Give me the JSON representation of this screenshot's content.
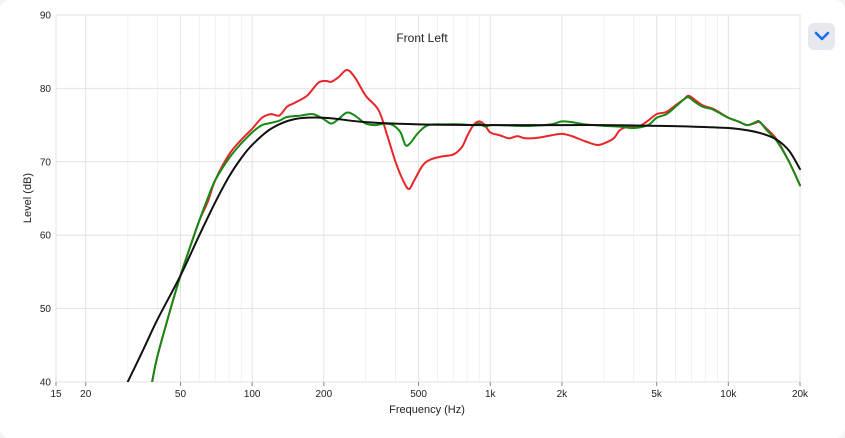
{
  "ui": {
    "collapse_icon": "chevron-down-icon",
    "accent": "#1a6fe8"
  },
  "chart_data": {
    "type": "line",
    "title": "Front Left",
    "xlabel": "Frequency (Hz)",
    "ylabel": "Level (dB)",
    "xscale": "log",
    "xlim": [
      15,
      20000
    ],
    "ylim": [
      40,
      90
    ],
    "grid": true,
    "legend": "none",
    "x_ticks": [
      {
        "value": 15,
        "label": "15"
      },
      {
        "value": 20,
        "label": "20"
      },
      {
        "value": 50,
        "label": "50"
      },
      {
        "value": 100,
        "label": "100"
      },
      {
        "value": 200,
        "label": "200"
      },
      {
        "value": 500,
        "label": "500"
      },
      {
        "value": 1000,
        "label": "1k"
      },
      {
        "value": 2000,
        "label": "2k"
      },
      {
        "value": 5000,
        "label": "5k"
      },
      {
        "value": 10000,
        "label": "10k"
      },
      {
        "value": 20000,
        "label": "20k"
      }
    ],
    "minor_x": [
      30,
      40,
      60,
      70,
      80,
      90,
      300,
      400,
      600,
      700,
      800,
      900,
      3000,
      4000,
      6000,
      7000,
      8000,
      9000
    ],
    "y_ticks": [
      {
        "value": 40,
        "label": "40"
      },
      {
        "value": 50,
        "label": "50"
      },
      {
        "value": 60,
        "label": "60"
      },
      {
        "value": 70,
        "label": "70"
      },
      {
        "value": 80,
        "label": "80"
      },
      {
        "value": 90,
        "label": "90"
      }
    ],
    "series": [
      {
        "color": "#e8262a",
        "points": [
          [
            38,
            40.0
          ],
          [
            40,
            43.5
          ],
          [
            45,
            49.5
          ],
          [
            50,
            54.5
          ],
          [
            55,
            58.5
          ],
          [
            60,
            62.0
          ],
          [
            65,
            64.5
          ],
          [
            70,
            67.5
          ],
          [
            80,
            71.0
          ],
          [
            90,
            73.0
          ],
          [
            100,
            74.5
          ],
          [
            110,
            76.0
          ],
          [
            120,
            76.5
          ],
          [
            130,
            76.3
          ],
          [
            140,
            77.5
          ],
          [
            150,
            78.0
          ],
          [
            170,
            79.0
          ],
          [
            190,
            80.8
          ],
          [
            205,
            81.0
          ],
          [
            215,
            80.9
          ],
          [
            230,
            81.5
          ],
          [
            250,
            82.5
          ],
          [
            270,
            81.5
          ],
          [
            300,
            79.0
          ],
          [
            340,
            77.0
          ],
          [
            370,
            73.5
          ],
          [
            400,
            70.0
          ],
          [
            430,
            67.5
          ],
          [
            455,
            66.3
          ],
          [
            480,
            67.5
          ],
          [
            520,
            69.5
          ],
          [
            560,
            70.3
          ],
          [
            620,
            70.7
          ],
          [
            700,
            71.0
          ],
          [
            760,
            72.0
          ],
          [
            800,
            73.5
          ],
          [
            850,
            75.0
          ],
          [
            900,
            75.5
          ],
          [
            950,
            75.0
          ],
          [
            1000,
            74.0
          ],
          [
            1100,
            73.6
          ],
          [
            1200,
            73.2
          ],
          [
            1300,
            73.5
          ],
          [
            1400,
            73.2
          ],
          [
            1600,
            73.3
          ],
          [
            1800,
            73.6
          ],
          [
            2000,
            73.8
          ],
          [
            2200,
            73.5
          ],
          [
            2500,
            72.8
          ],
          [
            2800,
            72.3
          ],
          [
            3000,
            72.5
          ],
          [
            3300,
            73.2
          ],
          [
            3500,
            74.3
          ],
          [
            3800,
            74.8
          ],
          [
            4200,
            74.8
          ],
          [
            4600,
            75.6
          ],
          [
            5000,
            76.5
          ],
          [
            5500,
            76.8
          ],
          [
            6000,
            77.7
          ],
          [
            6500,
            78.5
          ],
          [
            6800,
            79.0
          ],
          [
            7200,
            78.5
          ],
          [
            7800,
            77.7
          ],
          [
            8500,
            77.3
          ],
          [
            9000,
            76.9
          ],
          [
            10000,
            76.0
          ],
          [
            11000,
            75.5
          ],
          [
            12000,
            75.0
          ],
          [
            13000,
            75.3
          ],
          [
            13500,
            75.4
          ],
          [
            14500,
            74.5
          ],
          [
            16000,
            73.0
          ],
          [
            18000,
            70.0
          ],
          [
            20000,
            66.8
          ]
        ]
      },
      {
        "color": "#138a13",
        "points": [
          [
            38,
            40.0
          ],
          [
            40,
            43.5
          ],
          [
            45,
            49.5
          ],
          [
            50,
            54.5
          ],
          [
            55,
            58.5
          ],
          [
            60,
            62.0
          ],
          [
            65,
            65.0
          ],
          [
            70,
            67.5
          ],
          [
            80,
            70.5
          ],
          [
            90,
            72.5
          ],
          [
            100,
            74.0
          ],
          [
            110,
            75.0
          ],
          [
            120,
            75.3
          ],
          [
            130,
            75.6
          ],
          [
            140,
            76.1
          ],
          [
            160,
            76.3
          ],
          [
            180,
            76.5
          ],
          [
            200,
            75.8
          ],
          [
            215,
            75.2
          ],
          [
            230,
            75.8
          ],
          [
            250,
            76.7
          ],
          [
            270,
            76.3
          ],
          [
            300,
            75.2
          ],
          [
            330,
            75.0
          ],
          [
            360,
            75.2
          ],
          [
            390,
            75.0
          ],
          [
            420,
            74.0
          ],
          [
            440,
            72.3
          ],
          [
            460,
            72.5
          ],
          [
            500,
            74.0
          ],
          [
            550,
            75.0
          ],
          [
            650,
            75.1
          ],
          [
            750,
            75.1
          ],
          [
            850,
            75.0
          ],
          [
            900,
            75.2
          ],
          [
            950,
            74.8
          ],
          [
            1000,
            75.0
          ],
          [
            1100,
            75.0
          ],
          [
            1300,
            74.9
          ],
          [
            1500,
            74.9
          ],
          [
            1800,
            75.1
          ],
          [
            2000,
            75.5
          ],
          [
            2200,
            75.4
          ],
          [
            2500,
            75.1
          ],
          [
            3000,
            74.9
          ],
          [
            3500,
            74.8
          ],
          [
            4000,
            74.6
          ],
          [
            4600,
            75.0
          ],
          [
            5000,
            76.0
          ],
          [
            5500,
            76.5
          ],
          [
            6000,
            77.5
          ],
          [
            6500,
            78.5
          ],
          [
            6800,
            78.8
          ],
          [
            7200,
            78.2
          ],
          [
            7800,
            77.5
          ],
          [
            8500,
            77.2
          ],
          [
            9000,
            76.8
          ],
          [
            10000,
            76.0
          ],
          [
            11000,
            75.5
          ],
          [
            12000,
            75.0
          ],
          [
            13000,
            75.4
          ],
          [
            13500,
            75.5
          ],
          [
            14500,
            74.3
          ],
          [
            16000,
            72.8
          ],
          [
            18000,
            70.0
          ],
          [
            20000,
            66.8
          ]
        ]
      },
      {
        "color": "#111111",
        "points": [
          [
            30,
            40.0
          ],
          [
            35,
            44.5
          ],
          [
            40,
            48.5
          ],
          [
            50,
            54.5
          ],
          [
            60,
            60.0
          ],
          [
            70,
            64.5
          ],
          [
            80,
            68.0
          ],
          [
            90,
            70.5
          ],
          [
            100,
            72.3
          ],
          [
            120,
            74.5
          ],
          [
            150,
            75.8
          ],
          [
            200,
            76.0
          ],
          [
            300,
            75.4
          ],
          [
            500,
            75.1
          ],
          [
            1000,
            75.0
          ],
          [
            2000,
            75.0
          ],
          [
            3000,
            75.0
          ],
          [
            5000,
            74.9
          ],
          [
            7000,
            74.8
          ],
          [
            10000,
            74.6
          ],
          [
            12000,
            74.3
          ],
          [
            14000,
            73.8
          ],
          [
            16000,
            73.0
          ],
          [
            18000,
            71.5
          ],
          [
            20000,
            69.0
          ]
        ]
      }
    ]
  }
}
